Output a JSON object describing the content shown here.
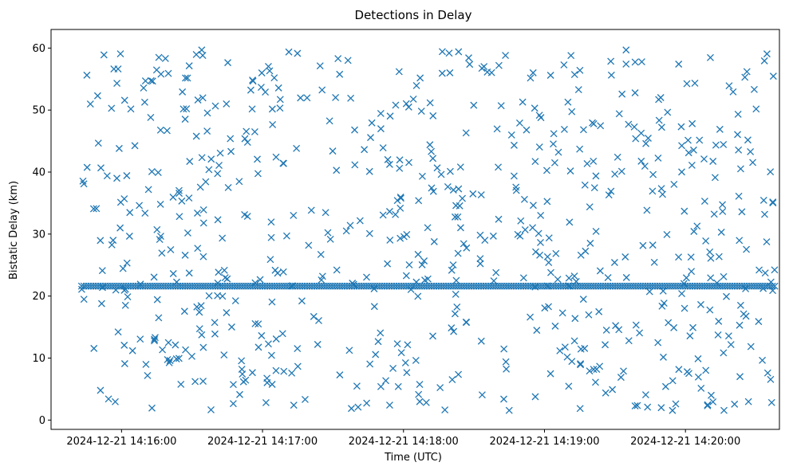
{
  "chart_data": {
    "type": "scatter",
    "title": "Detections in Delay",
    "xlabel": "Time (UTC)",
    "ylabel": "Bistatic Delay (km)",
    "marker": "x",
    "color": "#1f77b4",
    "grid": false,
    "xlim": [
      "2024-12-21 14:15:30",
      "2024-12-21 14:20:40"
    ],
    "ylim": [
      -1.5,
      63
    ],
    "x_ticks": [
      "2024-12-21 14:16:00",
      "2024-12-21 14:17:00",
      "2024-12-21 14:18:00",
      "2024-12-21 14:19:00",
      "2024-12-21 14:20:00"
    ],
    "y_ticks": [
      0,
      10,
      20,
      30,
      40,
      50,
      60
    ],
    "constant_track": {
      "delay_km": 21.6,
      "start": "2024-12-21 14:15:43",
      "end": "2024-12-21 14:20:38",
      "interval_s": 1
    },
    "clutter": {
      "start": "2024-12-21 14:15:43",
      "end": "2024-12-21 14:20:38",
      "delay_range": [
        1.5,
        60
      ],
      "count": 700
    }
  }
}
